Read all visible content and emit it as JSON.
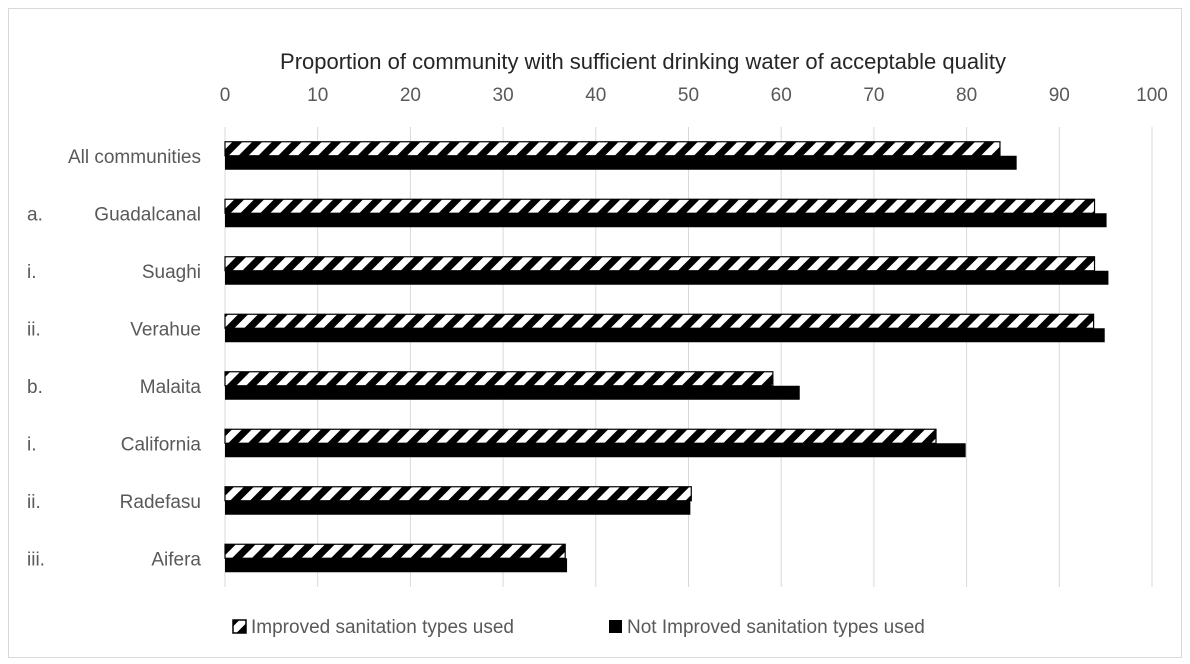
{
  "chart_data": {
    "type": "bar",
    "orientation": "horizontal",
    "title": "Proportion of community with sufficient drinking water of acceptable quality",
    "categories": [
      {
        "prefix": "",
        "label": "All communities"
      },
      {
        "prefix": "a.",
        "label": "Guadalcanal"
      },
      {
        "prefix": "i.",
        "label": "Suaghi"
      },
      {
        "prefix": "ii.",
        "label": "Verahue"
      },
      {
        "prefix": "b.",
        "label": "Malaita"
      },
      {
        "prefix": "i.",
        "label": "California"
      },
      {
        "prefix": "ii.",
        "label": "Radefasu"
      },
      {
        "prefix": "iii.",
        "label": "Aifera"
      }
    ],
    "series": [
      {
        "name": "Improved sanitation types used",
        "pattern": "hatch",
        "values": [
          83.6,
          93.8,
          93.8,
          93.7,
          59.1,
          76.7,
          50.3,
          36.7
        ]
      },
      {
        "name": "Not Improved sanitation types used",
        "pattern": "solid",
        "values": [
          85.4,
          95.1,
          95.3,
          94.9,
          62.0,
          79.9,
          50.2,
          36.9
        ]
      }
    ],
    "xlim": [
      0,
      100
    ],
    "xticks": [
      "0",
      "10",
      "20",
      "30",
      "40",
      "50",
      "60",
      "70",
      "80",
      "90",
      "100"
    ],
    "axis_position": "top",
    "grid": true,
    "legend_position": "bottom",
    "colors": {
      "bar": "#000000",
      "grid": "#d9d9d9",
      "text": "#595959"
    }
  }
}
